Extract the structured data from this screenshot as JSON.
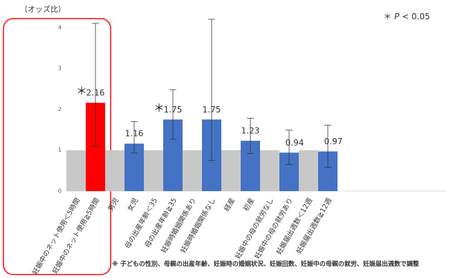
{
  "chart_data": {
    "type": "bar",
    "y_label": "（オッズ比）",
    "legend": {
      "symbol": "＊",
      "p": "P",
      "rest": "< 0.05"
    },
    "footnote": "※ 子どもの性別、母親の出産年齢、妊娠時の婚姻状況、妊娠回数、妊娠中の母親の就労、妊娠届出週数で調整",
    "categories": [
      "妊娠中のネット使用＜5時間",
      "妊娠中のネット使用≧5時間",
      "男児",
      "女児",
      "母の出産年齢＜35",
      "母の出産年齢≧35",
      "妊娠時婚姻関係あり",
      "妊娠時婚姻関係なし",
      "経産",
      "初産",
      "妊娠中の母の就労なし",
      "妊娠中の母の就労あり",
      "妊娠届出週数＜12週",
      "妊娠届出週数≧12週"
    ],
    "values": [
      1,
      2.16,
      1,
      1.16,
      1,
      1.75,
      1,
      1.75,
      1,
      1.23,
      1,
      0.94,
      1,
      0.97
    ],
    "ci_low": [
      null,
      1.1,
      null,
      0.93,
      null,
      1.27,
      null,
      0.75,
      null,
      0.92,
      null,
      0.65,
      null,
      0.58
    ],
    "ci_high": [
      null,
      4.1,
      null,
      1.7,
      null,
      2.48,
      null,
      4.2,
      null,
      1.78,
      null,
      1.49,
      null,
      1.61
    ],
    "colors": [
      "#c8c8c8",
      "#ff0000",
      "#c8c8c8",
      "#4472c4",
      "#c8c8c8",
      "#4472c4",
      "#c8c8c8",
      "#4472c4",
      "#c8c8c8",
      "#4472c4",
      "#c8c8c8",
      "#4472c4",
      "#c8c8c8",
      "#4472c4"
    ],
    "significant": [
      1,
      5
    ],
    "ylim": [
      0,
      4.2
    ],
    "yticks": [
      0,
      1,
      2,
      3,
      4
    ],
    "grid": false
  }
}
